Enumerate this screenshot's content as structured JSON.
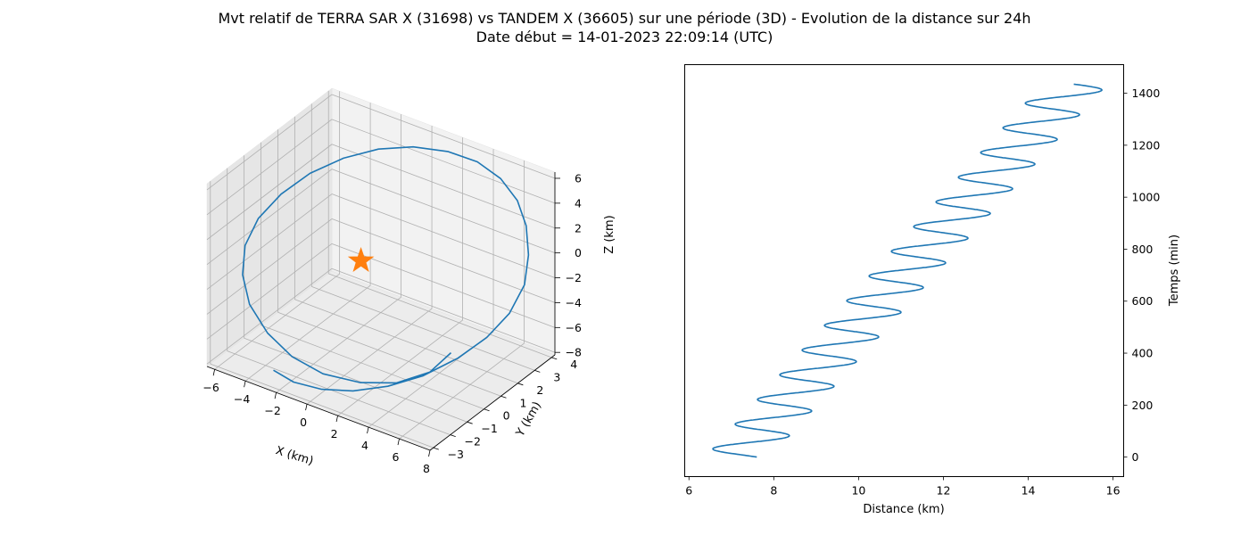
{
  "figure": {
    "title_line1": "Mvt relatif de TERRA SAR X (31698) vs TANDEM X (36605) sur une période (3D) - Evolution de la distance sur 24h",
    "title_line2": "Date début = 14-01-2023 22:09:14 (UTC)"
  },
  "colors": {
    "series": "#1f77b4",
    "marker": "#ff7f0e",
    "pane": "#f2f2f2",
    "grid": "#b0b0b0"
  },
  "chart_data": [
    {
      "type": "line3d",
      "xlabel": "X (km)",
      "ylabel": "Y (km)",
      "zlabel": "Z (km)",
      "x_ticks": [
        -6,
        -4,
        -2,
        0,
        2,
        4,
        6,
        8
      ],
      "y_ticks": [
        -3,
        -2,
        -1,
        0,
        1,
        2,
        3,
        4
      ],
      "z_ticks": [
        -8,
        -6,
        -4,
        -2,
        0,
        2,
        4,
        6
      ],
      "xlim": [
        -6.5,
        8
      ],
      "ylim": [
        -3.2,
        4.2
      ],
      "zlim": [
        -8.2,
        6.5
      ],
      "grid": true,
      "series": [
        {
          "x": [
            -2.4,
            -1.2,
            0.3,
            1.9,
            3.5,
            5.0,
            6.3,
            7.3,
            7.9,
            8.0,
            7.6,
            6.9,
            6.0,
            4.8,
            3.4,
            1.8,
            0.1,
            -1.5,
            -3.0,
            -4.3,
            -5.3,
            -5.9,
            -6.0,
            -5.5,
            -4.5,
            -3.0,
            -1.3,
            0.6,
            2.6,
            4.4,
            5.8,
            6.4
          ],
          "y": [
            -3.0,
            -2.9,
            -2.6,
            -2.2,
            -1.6,
            -0.9,
            0.0,
            0.8,
            1.6,
            2.4,
            3.0,
            3.5,
            3.8,
            3.9,
            3.8,
            3.5,
            3.0,
            2.4,
            1.7,
            0.9,
            0.1,
            -0.7,
            -1.4,
            -2.0,
            -2.5,
            -2.8,
            -2.9,
            -2.8,
            -2.4,
            -1.9,
            -1.2,
            -0.5
          ],
          "z": [
            -6.8,
            -7.3,
            -7.5,
            -7.3,
            -6.8,
            -6.0,
            -4.9,
            -3.6,
            -2.2,
            -0.7,
            0.9,
            2.4,
            3.7,
            4.8,
            5.6,
            6.0,
            6.1,
            5.8,
            5.1,
            4.1,
            2.8,
            1.4,
            -0.1,
            -1.6,
            -3.0,
            -4.3,
            -5.3,
            -5.9,
            -6.1,
            -5.8,
            -5.0,
            -3.9
          ]
        }
      ],
      "marker": {
        "shape": "star",
        "x": 0,
        "y": 0,
        "z": 0
      }
    },
    {
      "type": "line",
      "xlabel": "Distance (km)",
      "ylabel": "Temps (min)",
      "x_ticks": [
        6,
        8,
        10,
        12,
        14,
        16
      ],
      "y_ticks": [
        0,
        200,
        400,
        600,
        800,
        1000,
        1200,
        1400
      ],
      "xlim": [
        5.9,
        16.25
      ],
      "ylim": [
        -75,
        1510
      ],
      "grid": false,
      "curve": {
        "t_max": 1435,
        "period_min": 95,
        "center_start": 7.15,
        "center_end": 15.1,
        "amplitude": 0.62,
        "x_at_t0": 7.6
      }
    }
  ]
}
